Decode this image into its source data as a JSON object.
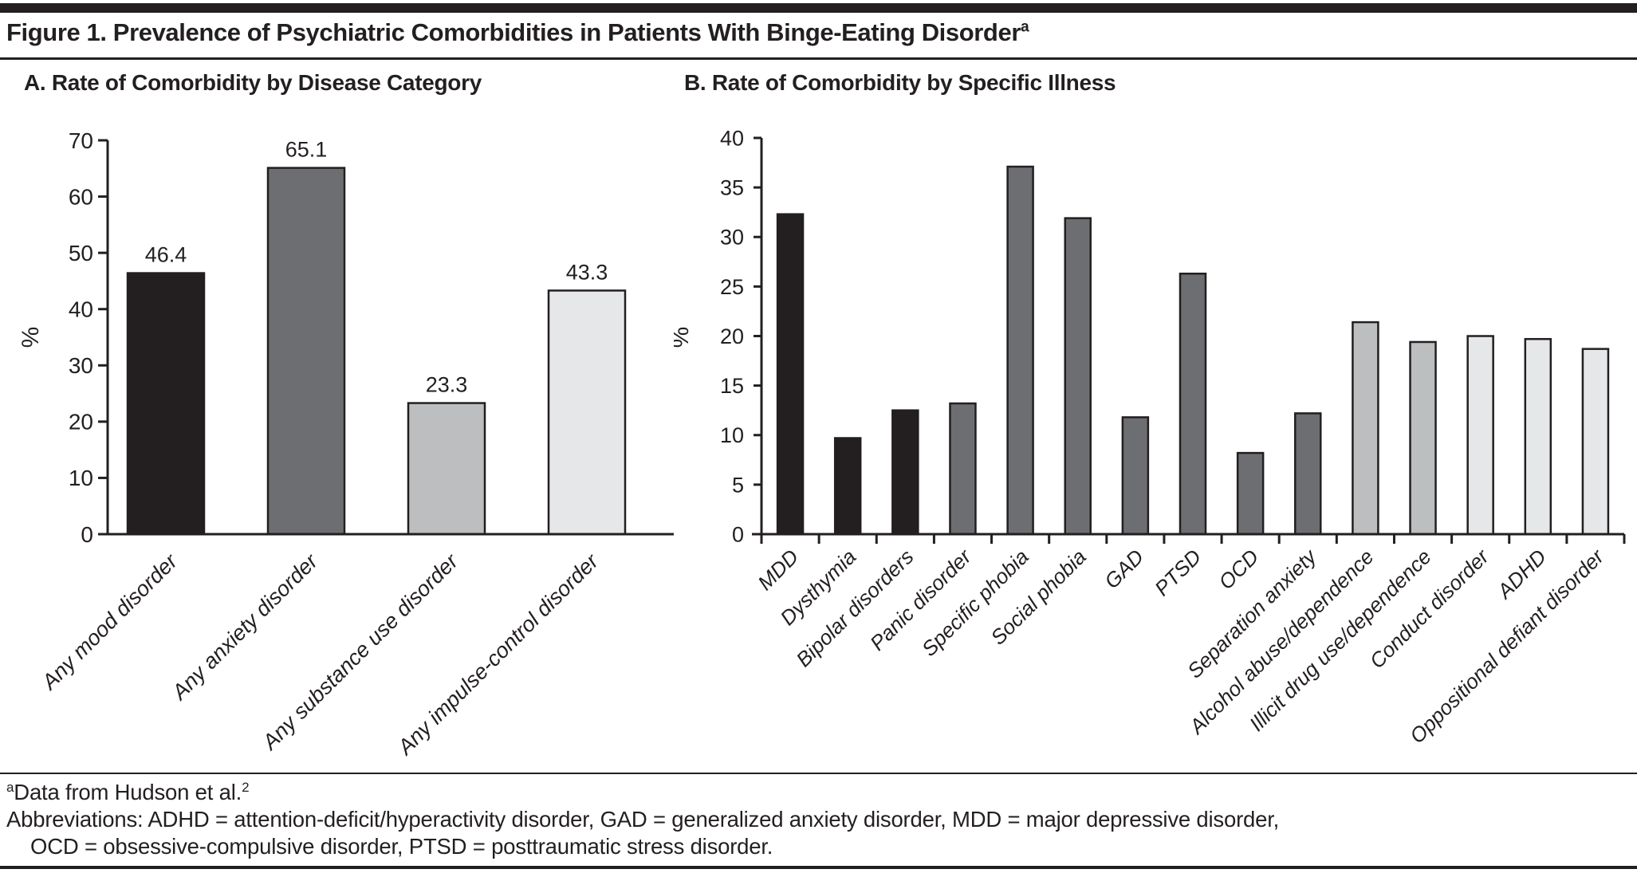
{
  "figure": {
    "title": "Figure 1. Prevalence of Psychiatric Comorbidities in Patients With Binge-Eating Disorder",
    "title_superscript": "a"
  },
  "footnotes": {
    "source_marker": "a",
    "source_text": "Data from Hudson et al.",
    "source_ref": "2",
    "abbreviations_line1": "Abbreviations: ADHD = attention-deficit/hyperactivity disorder, GAD = generalized anxiety disorder, MDD = major depressive disorder,",
    "abbreviations_line2": "OCD = obsessive-compulsive disorder, PTSD = posttraumatic stress disorder."
  },
  "colors": {
    "ink": "#231f20",
    "bar_black": "#231f20",
    "bar_dark_gray": "#6d6e71",
    "bar_medium_gray": "#bcbec0",
    "bar_light_gray": "#e6e7e8"
  },
  "chart_data": [
    {
      "id": "panelA",
      "type": "bar",
      "title": "A. Rate of Comorbidity by Disease Category",
      "ylabel": "%",
      "ylim": [
        0,
        70
      ],
      "yticks": [
        0,
        10,
        20,
        30,
        40,
        50,
        60,
        70
      ],
      "grid": false,
      "legend": "none",
      "categories": [
        "Any mood disorder",
        "Any anxiety disorder",
        "Any substance use disorder",
        "Any impulse-control disorder"
      ],
      "values": [
        46.4,
        65.1,
        23.3,
        43.3
      ],
      "data_labels": [
        "46.4",
        "65.1",
        "23.3",
        "43.3"
      ],
      "bar_colors": [
        "#231f20",
        "#6d6e71",
        "#bcbec0",
        "#e6e7e8"
      ]
    },
    {
      "id": "panelB",
      "type": "bar",
      "title": "B. Rate of Comorbidity by Specific Illness",
      "ylabel": "%",
      "ylim": [
        0,
        40
      ],
      "yticks": [
        0,
        5,
        10,
        15,
        20,
        25,
        30,
        35,
        40
      ],
      "grid": false,
      "legend": "none",
      "categories": [
        "MDD",
        "Dysthymia",
        "Bipolar disorders",
        "Panic disorder",
        "Specific phobia",
        "Social phobia",
        "GAD",
        "PTSD",
        "OCD",
        "Separation anxiety",
        "Alcohol abuse/dependence",
        "Illicit drug use/dependence",
        "Conduct disorder",
        "ADHD",
        "Oppositional defiant disorder"
      ],
      "values": [
        32.3,
        9.7,
        12.5,
        13.2,
        37.1,
        31.9,
        11.8,
        26.3,
        8.2,
        12.2,
        21.4,
        19.4,
        20.0,
        19.7,
        18.7
      ],
      "data_labels": null,
      "bar_colors": [
        "#231f20",
        "#231f20",
        "#231f20",
        "#6d6e71",
        "#6d6e71",
        "#6d6e71",
        "#6d6e71",
        "#6d6e71",
        "#6d6e71",
        "#6d6e71",
        "#bcbec0",
        "#bcbec0",
        "#e6e7e8",
        "#e6e7e8",
        "#e6e7e8"
      ]
    }
  ]
}
